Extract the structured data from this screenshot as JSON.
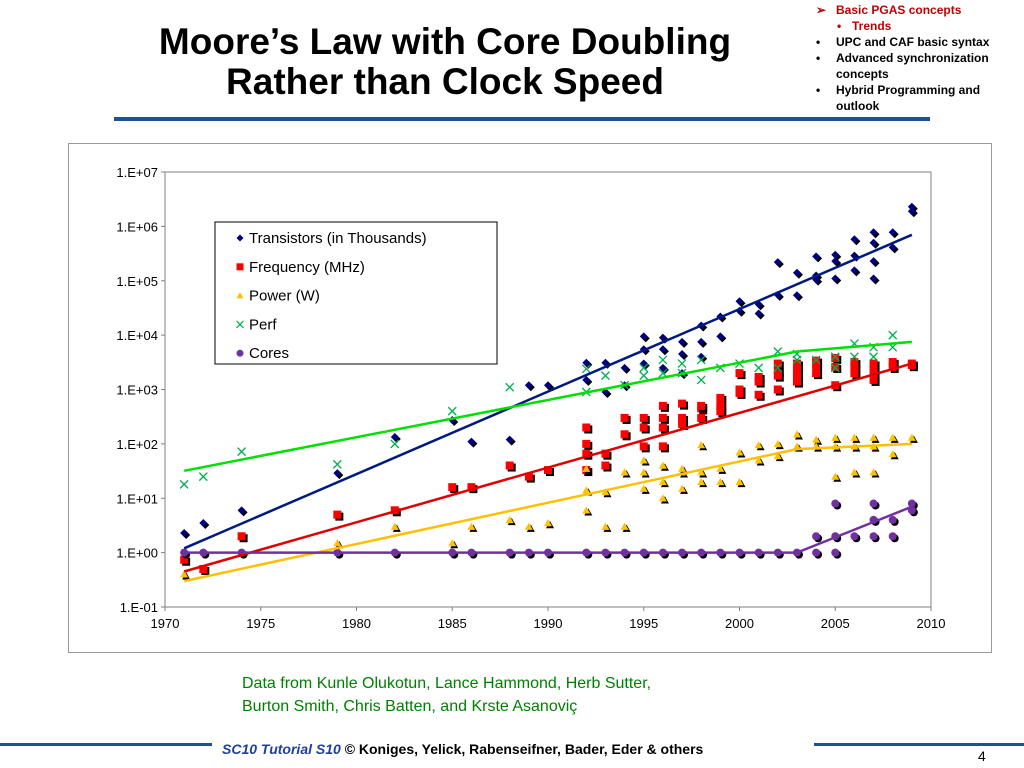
{
  "slide": {
    "title_line1": "Moore’s Law with Core Doubling",
    "title_line2": "Rather than Clock Speed",
    "outline": [
      {
        "marker": "➢",
        "text": "Basic PGAS concepts",
        "active": true,
        "level": 0
      },
      {
        "marker": "•",
        "text": "Trends",
        "active": true,
        "level": 1
      },
      {
        "marker": "•",
        "text": "UPC and CAF basic syntax",
        "active": false,
        "level": 0
      },
      {
        "marker": "•",
        "text": "Advanced synchronization concepts",
        "active": false,
        "level": 0
      },
      {
        "marker": "•",
        "text": "Hybrid Programming and outlook",
        "active": false,
        "level": 0
      }
    ],
    "caption_line1": "Data from Kunle Olukotun, Lance Hammond, Herb Sutter,",
    "caption_line2": "Burton Smith, Chris Batten, and Krste Asanoviç",
    "footer_blue": "SC10 Tutorial S10",
    "footer_rest": "© Koniges, Yelick, Rabenseifner, Bader, Eder & others",
    "page_number": "4",
    "colors": {
      "rule": "#1f4e9c",
      "caption": "#008000",
      "active": "#c00000"
    }
  },
  "chart_data": {
    "type": "scatter",
    "yscale": "log",
    "xlim": [
      1970,
      2010
    ],
    "ylim": [
      0.1,
      10000000
    ],
    "x_ticks": [
      "1970",
      "1975",
      "1980",
      "1985",
      "1990",
      "1995",
      "2000",
      "2005",
      "2010"
    ],
    "y_ticks": [
      "1.E-01",
      "1.E+00",
      "1.E+01",
      "1.E+02",
      "1.E+03",
      "1.E+04",
      "1.E+05",
      "1.E+06",
      "1.E+07"
    ],
    "legend_position": "upper-left",
    "series": [
      {
        "name": "Transistors (in Thousands)",
        "marker": "diamond",
        "color": "#000080",
        "trend": [
          [
            1971,
            1.2
          ],
          [
            2009,
            700000
          ]
        ],
        "points": [
          [
            1971,
            2.3
          ],
          [
            1972,
            3.5
          ],
          [
            1974,
            6
          ],
          [
            1979,
            29
          ],
          [
            1982,
            134
          ],
          [
            1985,
            275
          ],
          [
            1986,
            110
          ],
          [
            1988,
            120
          ],
          [
            1989,
            1200
          ],
          [
            1990,
            1200
          ],
          [
            1992,
            3100
          ],
          [
            1992,
            1500
          ],
          [
            1993,
            3100
          ],
          [
            1993,
            900
          ],
          [
            1994,
            2500
          ],
          [
            1994,
            1200
          ],
          [
            1995,
            5500
          ],
          [
            1995,
            9500
          ],
          [
            1995,
            3000
          ],
          [
            1996,
            5500
          ],
          [
            1996,
            9000
          ],
          [
            1996,
            2500
          ],
          [
            1997,
            7500
          ],
          [
            1997,
            4500
          ],
          [
            1997,
            2000
          ],
          [
            1998,
            15000
          ],
          [
            1998,
            7500
          ],
          [
            1998,
            4000
          ],
          [
            1999,
            22000
          ],
          [
            1999,
            9500
          ],
          [
            2000,
            42000
          ],
          [
            2000,
            28000
          ],
          [
            2001,
            25000
          ],
          [
            2001,
            37000
          ],
          [
            2002,
            55000
          ],
          [
            2002,
            220000
          ],
          [
            2003,
            140000
          ],
          [
            2003,
            54000
          ],
          [
            2004,
            125000
          ],
          [
            2004,
            280000
          ],
          [
            2004,
            105000
          ],
          [
            2005,
            230000
          ],
          [
            2005,
            300000
          ],
          [
            2005,
            110000
          ],
          [
            2006,
            580000
          ],
          [
            2006,
            290000
          ],
          [
            2006,
            155000
          ],
          [
            2007,
            780000
          ],
          [
            2007,
            500000
          ],
          [
            2007,
            230000
          ],
          [
            2007,
            110000
          ],
          [
            2008,
            780000
          ],
          [
            2008,
            410000
          ],
          [
            2009,
            2300000
          ],
          [
            2009,
            1900000
          ]
        ]
      },
      {
        "name": "Frequency (MHz)",
        "marker": "square",
        "color": "#ff0000",
        "trend": [
          [
            1971,
            0.45
          ],
          [
            2009,
            3000
          ]
        ],
        "points": [
          [
            1971,
            0.74
          ],
          [
            1972,
            0.5
          ],
          [
            1974,
            2
          ],
          [
            1979,
            5
          ],
          [
            1982,
            6
          ],
          [
            1985,
            16
          ],
          [
            1986,
            16
          ],
          [
            1988,
            40
          ],
          [
            1989,
            25
          ],
          [
            1990,
            33
          ],
          [
            1992,
            200
          ],
          [
            1992,
            100
          ],
          [
            1992,
            66
          ],
          [
            1992,
            33
          ],
          [
            1993,
            66
          ],
          [
            1993,
            40
          ],
          [
            1994,
            300
          ],
          [
            1994,
            150
          ],
          [
            1995,
            300
          ],
          [
            1995,
            200
          ],
          [
            1995,
            90
          ],
          [
            1996,
            500
          ],
          [
            1996,
            300
          ],
          [
            1996,
            200
          ],
          [
            1996,
            90
          ],
          [
            1997,
            550
          ],
          [
            1997,
            300
          ],
          [
            1997,
            233
          ],
          [
            1998,
            450
          ],
          [
            1998,
            300
          ],
          [
            1998,
            500
          ],
          [
            1999,
            700
          ],
          [
            1999,
            500
          ],
          [
            1999,
            400
          ],
          [
            2000,
            1000
          ],
          [
            2000,
            2000
          ],
          [
            2000,
            866
          ],
          [
            2001,
            1700
          ],
          [
            2001,
            1400
          ],
          [
            2001,
            800
          ],
          [
            2002,
            2200
          ],
          [
            2002,
            3000
          ],
          [
            2002,
            1800
          ],
          [
            2002,
            1000
          ],
          [
            2003,
            3000
          ],
          [
            2003,
            2200
          ],
          [
            2003,
            1800
          ],
          [
            2003,
            1400
          ],
          [
            2004,
            3400
          ],
          [
            2004,
            2800
          ],
          [
            2004,
            2000
          ],
          [
            2005,
            3800
          ],
          [
            2005,
            2600
          ],
          [
            2005,
            1200
          ],
          [
            2006,
            3200
          ],
          [
            2006,
            2600
          ],
          [
            2006,
            2000
          ],
          [
            2007,
            3000
          ],
          [
            2007,
            2400
          ],
          [
            2007,
            1800
          ],
          [
            2007,
            1500
          ],
          [
            2008,
            3200
          ],
          [
            2008,
            2600
          ],
          [
            2009,
            3000
          ],
          [
            2009,
            2800
          ]
        ]
      },
      {
        "name": "Power (W)",
        "marker": "triangle",
        "color": "#ffc000",
        "trend": [
          [
            1971,
            0.3
          ],
          [
            2003,
            80
          ],
          [
            2009,
            100
          ]
        ],
        "points": [
          [
            1971,
            0.4
          ],
          [
            1979,
            1.5
          ],
          [
            1982,
            3
          ],
          [
            1985,
            1.5
          ],
          [
            1986,
            3
          ],
          [
            1988,
            4
          ],
          [
            1989,
            3
          ],
          [
            1990,
            3.5
          ],
          [
            1992,
            14
          ],
          [
            1992,
            6
          ],
          [
            1992,
            35
          ],
          [
            1993,
            3
          ],
          [
            1993,
            13
          ],
          [
            1994,
            3
          ],
          [
            1994,
            30
          ],
          [
            1995,
            15
          ],
          [
            1995,
            30
          ],
          [
            1995,
            50
          ],
          [
            1996,
            10
          ],
          [
            1996,
            40
          ],
          [
            1996,
            20
          ],
          [
            1997,
            30
          ],
          [
            1997,
            15
          ],
          [
            1997,
            35
          ],
          [
            1998,
            20
          ],
          [
            1998,
            30
          ],
          [
            1998,
            95
          ],
          [
            1999,
            20
          ],
          [
            1999,
            35
          ],
          [
            2000,
            20
          ],
          [
            2000,
            70
          ],
          [
            2001,
            95
          ],
          [
            2001,
            50
          ],
          [
            2002,
            100
          ],
          [
            2002,
            60
          ],
          [
            2003,
            150
          ],
          [
            2003,
            90
          ],
          [
            2004,
            120
          ],
          [
            2004,
            90
          ],
          [
            2005,
            25
          ],
          [
            2005,
            130
          ],
          [
            2005,
            90
          ],
          [
            2006,
            30
          ],
          [
            2006,
            130
          ],
          [
            2006,
            90
          ],
          [
            2007,
            30
          ],
          [
            2007,
            130
          ],
          [
            2007,
            90
          ],
          [
            2008,
            130
          ],
          [
            2008,
            65
          ],
          [
            2009,
            130
          ]
        ]
      },
      {
        "name": "Perf",
        "marker": "x",
        "color": "#00b050",
        "trend": [
          [
            1971,
            32
          ],
          [
            2003,
            5000
          ],
          [
            2009,
            7500
          ]
        ],
        "points": [
          [
            1971,
            18
          ],
          [
            1972,
            25
          ],
          [
            1974,
            72
          ],
          [
            1979,
            42
          ],
          [
            1982,
            100
          ],
          [
            1985,
            400
          ],
          [
            1988,
            1100
          ],
          [
            1992,
            900
          ],
          [
            1992,
            2400
          ],
          [
            1993,
            1800
          ],
          [
            1994,
            1200
          ],
          [
            1995,
            1800
          ],
          [
            1995,
            2500
          ],
          [
            1996,
            3500
          ],
          [
            1996,
            2000
          ],
          [
            1997,
            2000
          ],
          [
            1997,
            3000
          ],
          [
            1998,
            3500
          ],
          [
            1998,
            1500
          ],
          [
            1999,
            2500
          ],
          [
            2000,
            3000
          ],
          [
            2001,
            2500
          ],
          [
            2002,
            5000
          ],
          [
            2002,
            2500
          ],
          [
            2003,
            3500
          ],
          [
            2003,
            4500
          ],
          [
            2004,
            3500
          ],
          [
            2005,
            4000
          ],
          [
            2005,
            2500
          ],
          [
            2006,
            7000
          ],
          [
            2006,
            4000
          ],
          [
            2007,
            6000
          ],
          [
            2007,
            4000
          ],
          [
            2008,
            10000
          ],
          [
            2008,
            6000
          ]
        ]
      },
      {
        "name": "Cores",
        "marker": "circle",
        "color": "#7030a0",
        "trend": [
          [
            1971,
            1
          ],
          [
            2003,
            1
          ],
          [
            2009,
            7
          ]
        ],
        "points": [
          [
            1971,
            1
          ],
          [
            1972,
            1
          ],
          [
            1974,
            1
          ],
          [
            1979,
            1
          ],
          [
            1982,
            1
          ],
          [
            1985,
            1
          ],
          [
            1986,
            1
          ],
          [
            1988,
            1
          ],
          [
            1989,
            1
          ],
          [
            1990,
            1
          ],
          [
            1992,
            1
          ],
          [
            1993,
            1
          ],
          [
            1994,
            1
          ],
          [
            1995,
            1
          ],
          [
            1996,
            1
          ],
          [
            1997,
            1
          ],
          [
            1998,
            1
          ],
          [
            1999,
            1
          ],
          [
            2000,
            1
          ],
          [
            2001,
            1
          ],
          [
            2002,
            1
          ],
          [
            2003,
            1
          ],
          [
            2004,
            1
          ],
          [
            2004,
            2
          ],
          [
            2005,
            1
          ],
          [
            2005,
            2
          ],
          [
            2005,
            8
          ],
          [
            2006,
            2
          ],
          [
            2007,
            2
          ],
          [
            2007,
            4
          ],
          [
            2007,
            8
          ],
          [
            2008,
            2
          ],
          [
            2008,
            4
          ],
          [
            2009,
            8
          ],
          [
            2009,
            6
          ]
        ]
      }
    ]
  }
}
